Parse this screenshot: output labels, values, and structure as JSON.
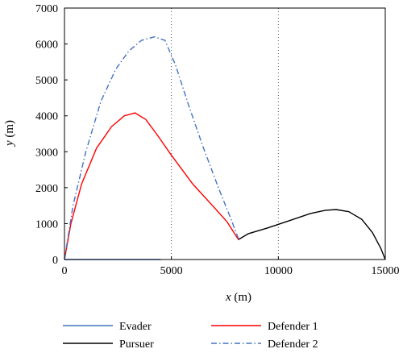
{
  "chart_data": {
    "type": "line",
    "title": "",
    "xlabel_var": "x",
    "xlabel_unit": " (m)",
    "ylabel_var": "y",
    "ylabel_unit": " (m)",
    "xlim": [
      0,
      15000
    ],
    "ylim": [
      0,
      7000
    ],
    "xticks": [
      0,
      5000,
      10000,
      15000
    ],
    "yticks": [
      0,
      1000,
      2000,
      3000,
      4000,
      5000,
      6000,
      7000
    ],
    "xtick_labels": [
      "0",
      "5000",
      "10000",
      "15000"
    ],
    "ytick_labels": [
      "0",
      "1000",
      "2000",
      "3000",
      "4000",
      "5000",
      "6000",
      "7000"
    ],
    "grid": "vertical dotted at x = 5000 and 10000",
    "legend_placement": "below plot, two columns",
    "series": [
      {
        "name": "Evader",
        "color": "#4472C4",
        "dash": "solid",
        "x": [
          0,
          4500
        ],
        "y": [
          0,
          0
        ]
      },
      {
        "name": "Pursuer",
        "color": "#000000",
        "dash": "solid",
        "x": [
          8150,
          8600,
          9500,
          10500,
          11500,
          12200,
          12700,
          13300,
          13900,
          14400,
          14800,
          15000
        ],
        "y": [
          560,
          720,
          880,
          1080,
          1280,
          1370,
          1390,
          1330,
          1120,
          750,
          300,
          0
        ]
      },
      {
        "name": "Defender 1",
        "color": "#FF0000",
        "dash": "solid",
        "x": [
          0,
          300,
          800,
          1500,
          2200,
          2800,
          3300,
          3800,
          4300,
          5000,
          6000,
          7000,
          7600,
          8150
        ],
        "y": [
          0,
          1000,
          2100,
          3100,
          3700,
          4000,
          4080,
          3900,
          3500,
          2900,
          2100,
          1450,
          1050,
          540
        ]
      },
      {
        "name": "Defender 2",
        "color": "#4472C4",
        "dash": "dashdot",
        "x": [
          0,
          400,
          1000,
          1700,
          2400,
          3000,
          3600,
          4200,
          4700,
          5200,
          5800,
          6500,
          7200,
          7800,
          8150
        ],
        "y": [
          0,
          1500,
          3000,
          4400,
          5300,
          5800,
          6100,
          6200,
          6100,
          5400,
          4300,
          3100,
          2000,
          1100,
          560
        ]
      }
    ]
  }
}
